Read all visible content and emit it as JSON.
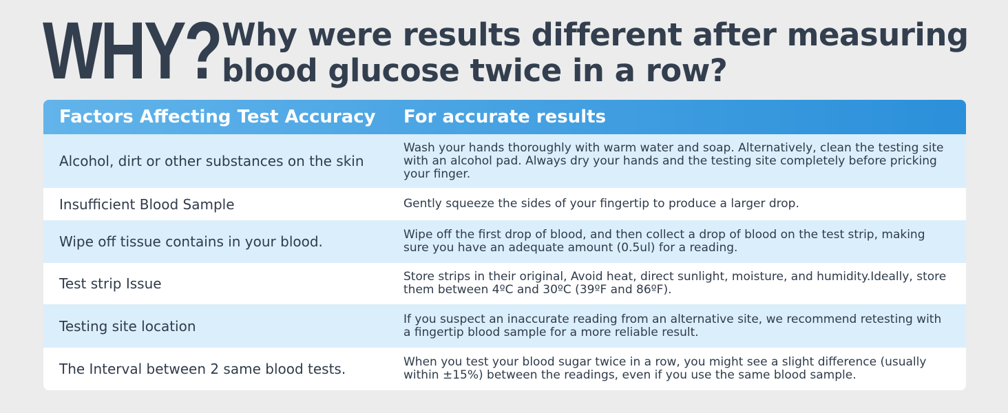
{
  "header": {
    "badge": "WHY?",
    "title_line1": "Why were results different after measuring",
    "title_line2": "blood glucose twice in a row?"
  },
  "table": {
    "columns": [
      "Factors Affecting Test Accuracy",
      "For accurate results"
    ],
    "rows": [
      [
        "Alcohol, dirt or other substances on the skin",
        "Wash your hands thoroughly with warm water and soap. Alternatively, clean the testing site with an alcohol pad. Always dry your hands and the testing site completely before pricking your finger."
      ],
      [
        "Insufficient Blood Sample",
        "Gently squeeze the sides of your fingertip to produce a larger drop."
      ],
      [
        "Wipe off tissue contains in your blood.",
        "Wipe off the first drop of blood, and then collect a drop of blood on the test strip, making sure you have an adequate amount (0.5ul) for a reading."
      ],
      [
        "Test strip Issue",
        "Store strips in their original, Avoid heat, direct sunlight, moisture, and humidity.Ideally, store them between 4ºC and 30ºC (39ºF and 86ºF)."
      ],
      [
        "Testing site location",
        "If you suspect an inaccurate reading from an alternative site, we recommend retesting with a fingertip blood sample for a more reliable result."
      ],
      [
        "The Interval between 2 same blood tests.",
        "When you test your blood sugar twice in a row, you might see a slight difference (usually within ±15%) between the readings, even if you use the same blood sample."
      ]
    ]
  }
}
